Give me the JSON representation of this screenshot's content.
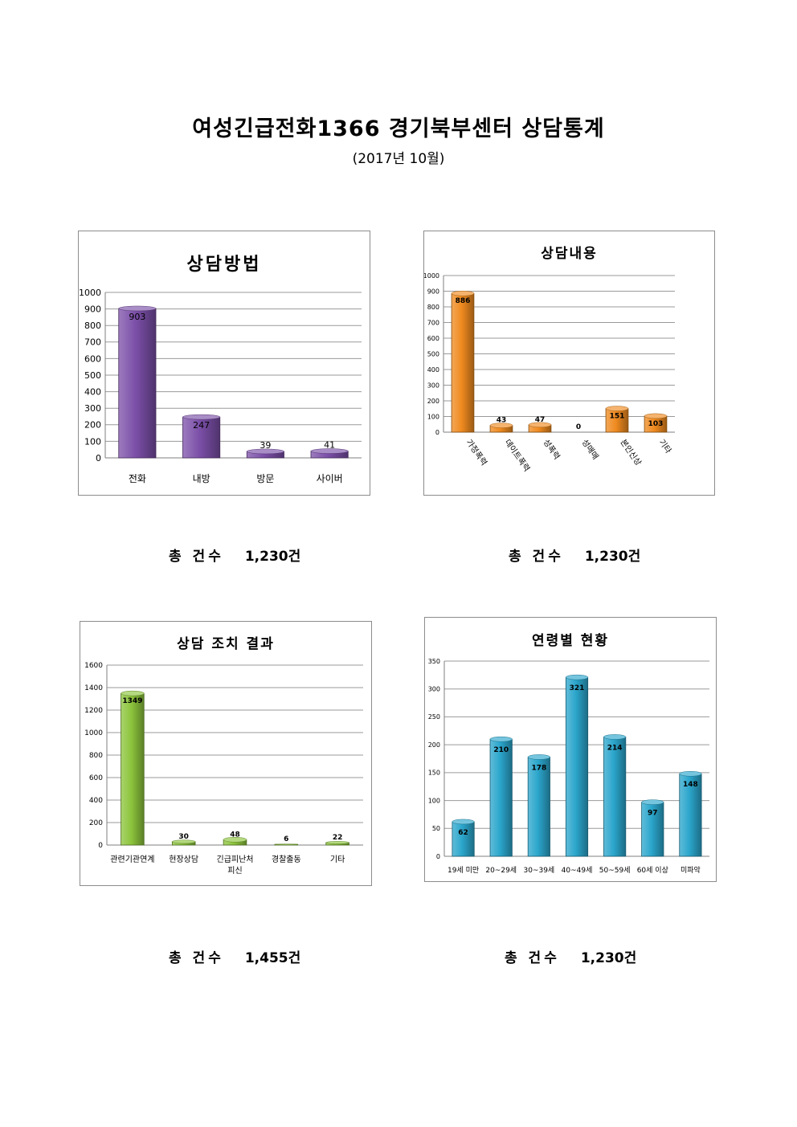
{
  "page": {
    "title": "여성긴급전화1366 경기북부센터 상담통계",
    "subtitle": "(2017년 10월)"
  },
  "totals": [
    {
      "label": "총 건수",
      "value": "1,230건"
    },
    {
      "label": "총 건수",
      "value": "1,230건"
    },
    {
      "label": "총 건수",
      "value": "1,455건"
    },
    {
      "label": "총 건수",
      "value": "1,230건"
    }
  ],
  "chart_data": [
    {
      "type": "bar",
      "title": "상담방법",
      "categories": [
        "전화",
        "내방",
        "방문",
        "사이버"
      ],
      "values": [
        903,
        247,
        39,
        41
      ],
      "ylim": [
        0,
        1000
      ],
      "yticks": [
        0,
        100,
        200,
        300,
        400,
        500,
        600,
        700,
        800,
        900,
        1000
      ],
      "color": "#7b4fa8",
      "grid": true,
      "xlabel": "",
      "ylabel": ""
    },
    {
      "type": "bar",
      "title": "상담내용",
      "categories": [
        "가정폭력",
        "데이트폭력",
        "성폭력",
        "성매매",
        "본인신상",
        "기타"
      ],
      "values": [
        886,
        43,
        47,
        0,
        151,
        103
      ],
      "ylim": [
        0,
        1000
      ],
      "yticks": [
        0,
        100,
        200,
        300,
        400,
        500,
        600,
        700,
        800,
        900,
        1000
      ],
      "color": "#ef8a1f",
      "grid": true,
      "xlabel": "",
      "ylabel": ""
    },
    {
      "type": "bar",
      "title": "상담 조치 결과",
      "categories": [
        "관련기관연계",
        "현장상담",
        "긴급피난처\n피신",
        "경찰출동",
        "기타"
      ],
      "values": [
        1349,
        30,
        48,
        6,
        22
      ],
      "ylim": [
        0,
        1600
      ],
      "yticks": [
        0,
        200,
        400,
        600,
        800,
        1000,
        1200,
        1400,
        1600
      ],
      "color": "#8cc43c",
      "grid": true,
      "xlabel": "",
      "ylabel": ""
    },
    {
      "type": "bar",
      "title": "연령별 현황",
      "categories": [
        "19세 미만",
        "20~29세",
        "30~39세",
        "40~49세",
        "50~59세",
        "60세 이상",
        "미파악"
      ],
      "values": [
        62,
        210,
        178,
        321,
        214,
        97,
        148
      ],
      "ylim": [
        0,
        350
      ],
      "yticks": [
        0,
        50,
        100,
        150,
        200,
        250,
        300,
        350
      ],
      "color": "#2ba6cc",
      "grid": true,
      "xlabel": "",
      "ylabel": ""
    }
  ]
}
